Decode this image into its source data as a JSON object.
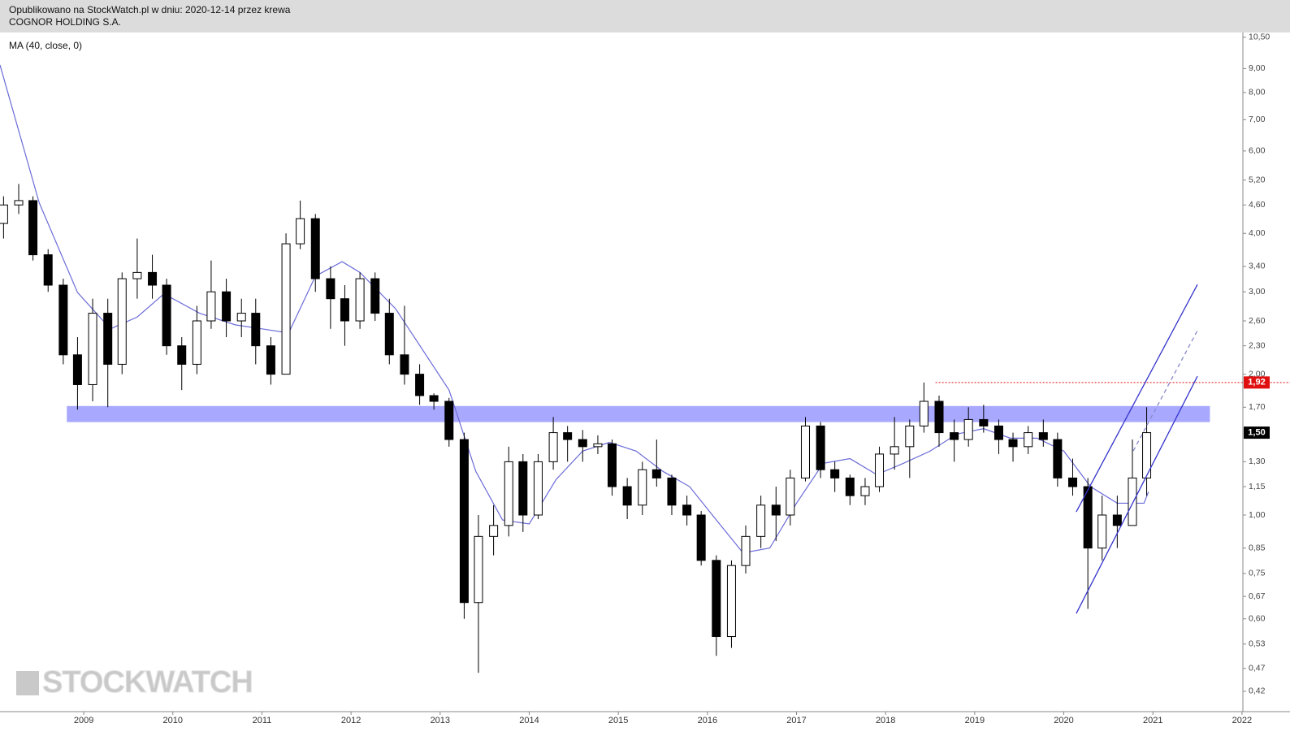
{
  "chart_data": {
    "type": "candlestick",
    "header": [
      "Opublikowano na StockWatch.pl w dniu: 2020-12-14 przez krewa",
      "COGNOR HOLDING S.A."
    ],
    "watermark": "STOCKWATCH",
    "log_scale": true,
    "grid": false,
    "up_color": "#ffffff",
    "down_color": "#000000",
    "xlim": [
      2008.06,
      2022.01
    ],
    "ylim": [
      0.38,
      10.75
    ],
    "xticks": [
      2009,
      2010,
      2011,
      2012,
      2013,
      2014,
      2015,
      2016,
      2017,
      2018,
      2019,
      2020,
      2021,
      2022
    ],
    "yticks": [
      {
        "value": 10.5,
        "label": "10,50"
      },
      {
        "value": 9,
        "label": "9,00"
      },
      {
        "value": 8,
        "label": "8,00"
      },
      {
        "value": 7,
        "label": "7,00"
      },
      {
        "value": 6,
        "label": "6,00"
      },
      {
        "value": 5.2,
        "label": "5,20"
      },
      {
        "value": 4.6,
        "label": "4,60"
      },
      {
        "value": 4,
        "label": "4,00"
      },
      {
        "value": 3.4,
        "label": "3,40"
      },
      {
        "value": 3,
        "label": "3,00"
      },
      {
        "value": 2.6,
        "label": "2,60"
      },
      {
        "value": 2.3,
        "label": "2,30"
      },
      {
        "value": 2,
        "label": "2,00"
      },
      {
        "value": 1.7,
        "label": "1,70"
      },
      {
        "value": 1.3,
        "label": "1,30"
      },
      {
        "value": 1.15,
        "label": "1,15"
      },
      {
        "value": 1,
        "label": "1,00"
      },
      {
        "value": 0.85,
        "label": "0,85"
      },
      {
        "value": 0.75,
        "label": "0,75"
      },
      {
        "value": 0.67,
        "label": "0,67"
      },
      {
        "value": 0.6,
        "label": "0,60"
      },
      {
        "value": 0.53,
        "label": "0,53"
      },
      {
        "value": 0.47,
        "label": "0,47"
      },
      {
        "value": 0.42,
        "label": "0,42"
      }
    ],
    "x": [
      2008.1,
      2008.27,
      2008.43,
      2008.6,
      2008.77,
      2008.93,
      2009.1,
      2009.27,
      2009.43,
      2009.6,
      2009.77,
      2009.93,
      2010.1,
      2010.27,
      2010.43,
      2010.6,
      2010.77,
      2010.93,
      2011.1,
      2011.27,
      2011.43,
      2011.6,
      2011.77,
      2011.93,
      2012.1,
      2012.27,
      2012.43,
      2012.6,
      2012.77,
      2012.93,
      2013.1,
      2013.27,
      2013.43,
      2013.6,
      2013.77,
      2013.93,
      2014.1,
      2014.27,
      2014.43,
      2014.6,
      2014.77,
      2014.93,
      2015.1,
      2015.27,
      2015.43,
      2015.6,
      2015.77,
      2015.93,
      2016.1,
      2016.27,
      2016.43,
      2016.6,
      2016.77,
      2016.93,
      2017.1,
      2017.27,
      2017.43,
      2017.6,
      2017.77,
      2017.93,
      2018.1,
      2018.27,
      2018.43,
      2018.6,
      2018.77,
      2018.93,
      2019.1,
      2019.27,
      2019.43,
      2019.6,
      2019.77,
      2019.93,
      2020.1,
      2020.27,
      2020.43,
      2020.6,
      2020.77,
      2020.93
    ],
    "open": [
      4.2,
      4.6,
      4.7,
      3.6,
      3.1,
      2.2,
      1.9,
      2.7,
      2.1,
      3.2,
      3.3,
      3.1,
      2.3,
      2.1,
      2.6,
      3.0,
      2.6,
      2.7,
      2.3,
      2.0,
      3.8,
      4.3,
      3.2,
      2.9,
      2.6,
      3.2,
      2.7,
      2.2,
      2.0,
      1.8,
      1.75,
      1.45,
      0.65,
      0.9,
      0.95,
      1.3,
      1.0,
      1.3,
      1.5,
      1.45,
      1.4,
      1.42,
      1.15,
      1.05,
      1.25,
      1.2,
      1.05,
      1.0,
      0.8,
      0.55,
      0.78,
      0.9,
      1.05,
      1.0,
      1.2,
      1.55,
      1.25,
      1.2,
      1.1,
      1.15,
      1.35,
      1.4,
      1.55,
      1.75,
      1.5,
      1.45,
      1.6,
      1.55,
      1.45,
      1.4,
      1.5,
      1.45,
      1.2,
      1.15,
      0.85,
      1.0,
      0.95,
      1.2
    ],
    "high": [
      4.8,
      5.1,
      4.8,
      3.7,
      3.2,
      2.4,
      2.9,
      2.9,
      3.3,
      3.9,
      3.6,
      3.2,
      2.4,
      2.8,
      3.5,
      3.2,
      2.9,
      2.9,
      2.4,
      4.0,
      4.7,
      4.4,
      3.4,
      3.1,
      3.3,
      3.3,
      2.9,
      2.8,
      2.1,
      1.82,
      1.78,
      1.5,
      1.0,
      1.05,
      1.4,
      1.35,
      1.35,
      1.62,
      1.55,
      1.52,
      1.48,
      1.45,
      1.2,
      1.3,
      1.45,
      1.22,
      1.1,
      1.02,
      0.82,
      0.8,
      0.95,
      1.1,
      1.15,
      1.25,
      1.62,
      1.58,
      1.3,
      1.22,
      1.2,
      1.4,
      1.62,
      1.6,
      1.92,
      1.8,
      1.6,
      1.7,
      1.72,
      1.6,
      1.5,
      1.55,
      1.6,
      1.5,
      1.32,
      1.2,
      1.1,
      1.1,
      1.45,
      1.7
    ],
    "low": [
      3.9,
      4.4,
      3.5,
      3.0,
      2.1,
      1.68,
      1.75,
      1.7,
      2.0,
      2.9,
      2.9,
      2.2,
      1.85,
      2.0,
      2.5,
      2.4,
      2.4,
      2.1,
      1.9,
      2.0,
      3.7,
      3.0,
      2.5,
      2.3,
      2.5,
      2.6,
      2.1,
      1.9,
      1.72,
      1.68,
      1.4,
      0.6,
      0.46,
      0.82,
      0.9,
      0.92,
      0.98,
      1.25,
      1.3,
      1.3,
      1.35,
      1.1,
      0.98,
      1.0,
      1.15,
      1.0,
      0.95,
      0.78,
      0.5,
      0.52,
      0.75,
      0.85,
      0.88,
      0.95,
      1.18,
      1.2,
      1.12,
      1.05,
      1.05,
      1.12,
      1.25,
      1.2,
      1.5,
      1.4,
      1.3,
      1.4,
      1.5,
      1.35,
      1.3,
      1.35,
      1.4,
      1.15,
      1.1,
      0.63,
      0.8,
      0.85,
      0.95,
      1.1
    ],
    "close": [
      4.6,
      4.7,
      3.6,
      3.1,
      2.2,
      1.9,
      2.7,
      2.1,
      3.2,
      3.3,
      3.1,
      2.3,
      2.1,
      2.6,
      3.0,
      2.6,
      2.7,
      2.3,
      2.0,
      3.8,
      4.3,
      3.2,
      2.9,
      2.6,
      3.2,
      2.7,
      2.2,
      2.0,
      1.8,
      1.75,
      1.45,
      0.65,
      0.9,
      0.95,
      1.3,
      1.0,
      1.3,
      1.5,
      1.45,
      1.4,
      1.42,
      1.15,
      1.05,
      1.25,
      1.2,
      1.05,
      1.0,
      0.8,
      0.55,
      0.78,
      0.9,
      1.05,
      1.0,
      1.2,
      1.55,
      1.25,
      1.2,
      1.1,
      1.15,
      1.35,
      1.4,
      1.55,
      1.75,
      1.5,
      1.45,
      1.6,
      1.55,
      1.45,
      1.4,
      1.5,
      1.45,
      1.2,
      1.15,
      0.85,
      1.0,
      0.95,
      1.2,
      1.5
    ],
    "moving_average": {
      "name": "MA (40, close, 0)",
      "color": "#6a6ad8",
      "x": [
        2008.06,
        2008.5,
        2008.93,
        2009.3,
        2009.6,
        2009.9,
        2010.3,
        2010.7,
        2011.0,
        2011.3,
        2011.6,
        2011.9,
        2012.1,
        2012.5,
        2012.8,
        2013.1,
        2013.4,
        2013.7,
        2014.0,
        2014.3,
        2014.6,
        2014.9,
        2015.2,
        2015.5,
        2015.8,
        2016.1,
        2016.4,
        2016.7,
        2017.0,
        2017.3,
        2017.6,
        2017.9,
        2018.2,
        2018.5,
        2018.8,
        2019.1,
        2019.4,
        2019.7,
        2020.0,
        2020.3,
        2020.6,
        2020.9,
        2020.95
      ],
      "values": [
        9.16,
        4.65,
        2.99,
        2.5,
        2.65,
        2.97,
        2.7,
        2.55,
        2.5,
        2.45,
        3.24,
        3.48,
        3.3,
        2.76,
        2.26,
        1.85,
        1.24,
        0.976,
        0.957,
        1.19,
        1.37,
        1.43,
        1.37,
        1.24,
        1.15,
        0.976,
        0.83,
        0.85,
        1.06,
        1.29,
        1.32,
        1.22,
        1.29,
        1.37,
        1.49,
        1.53,
        1.46,
        1.46,
        1.37,
        1.15,
        1.06,
        1.06,
        1.12
      ]
    },
    "support_zone": {
      "color": "#9999ff",
      "x": [
        2008.81,
        2021.64
      ],
      "y": [
        1.58,
        1.71
      ]
    },
    "trend_lines": [
      {
        "color": "#3333cc",
        "dashed": false,
        "x": [
          2020.14,
          2021.5
        ],
        "y": [
          0.616,
          1.98
        ]
      },
      {
        "color": "#3333cc",
        "dashed": false,
        "x": [
          2020.14,
          2021.5
        ],
        "y": [
          1.016,
          3.11
        ]
      },
      {
        "color": "#8888cc",
        "dashed": true,
        "x": [
          2020.78,
          2021.5
        ],
        "y": [
          1.371,
          2.48
        ]
      }
    ],
    "level_marker": {
      "value": 1.92,
      "label": "1,92",
      "color": "#e01010",
      "x": 2018.56
    },
    "price_marker": {
      "value": 1.5,
      "label": "1,50",
      "color": "#000000"
    }
  }
}
